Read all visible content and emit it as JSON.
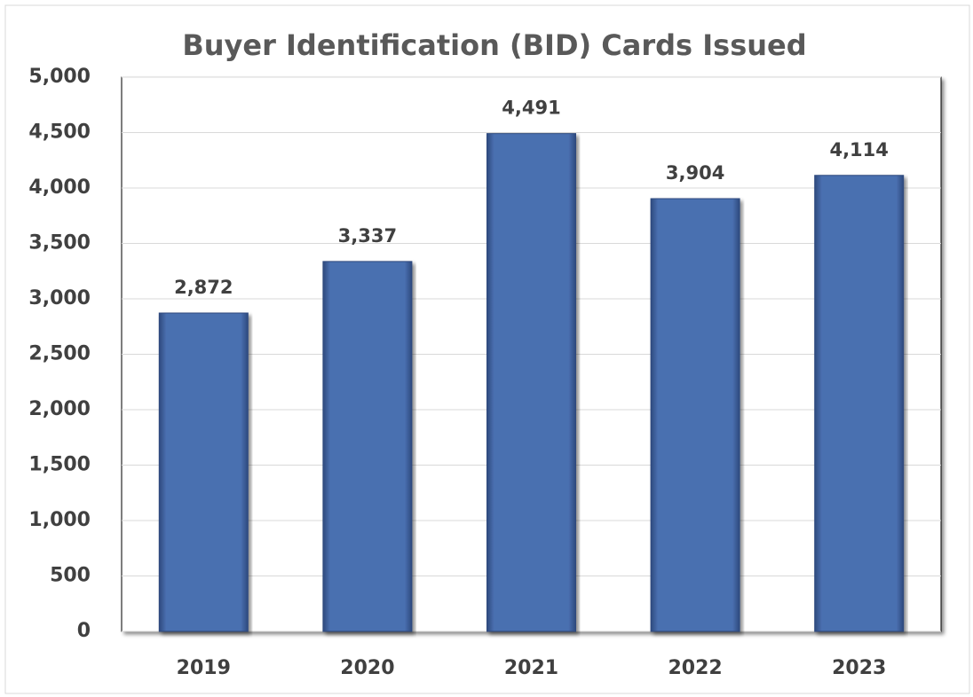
{
  "chart_data": {
    "type": "bar",
    "title": "Buyer Identification (BID) Cards Issued",
    "categories": [
      "2019",
      "2020",
      "2021",
      "2022",
      "2023"
    ],
    "values": [
      2872,
      3337,
      4491,
      3904,
      4114
    ],
    "value_labels": [
      "2,872",
      "3,337",
      "4,491",
      "3,904",
      "4,114"
    ],
    "color": "#4a6fb0",
    "ylim": [
      0,
      5000
    ],
    "yticks": [
      0,
      500,
      {
        "value": 1000,
        "label": "1,000"
      },
      {
        "value": 1500,
        "label": "1,500"
      },
      {
        "value": 2000,
        "label": "2,000"
      },
      {
        "value": 2500,
        "label": "2,500"
      },
      {
        "value": 3000,
        "label": "3,000"
      },
      {
        "value": 3500,
        "label": "3,500"
      },
      {
        "value": 4000,
        "label": "4,000"
      },
      {
        "value": 4500,
        "label": "4,500"
      },
      {
        "value": 5000,
        "label": "5,000"
      }
    ],
    "grid": true
  }
}
